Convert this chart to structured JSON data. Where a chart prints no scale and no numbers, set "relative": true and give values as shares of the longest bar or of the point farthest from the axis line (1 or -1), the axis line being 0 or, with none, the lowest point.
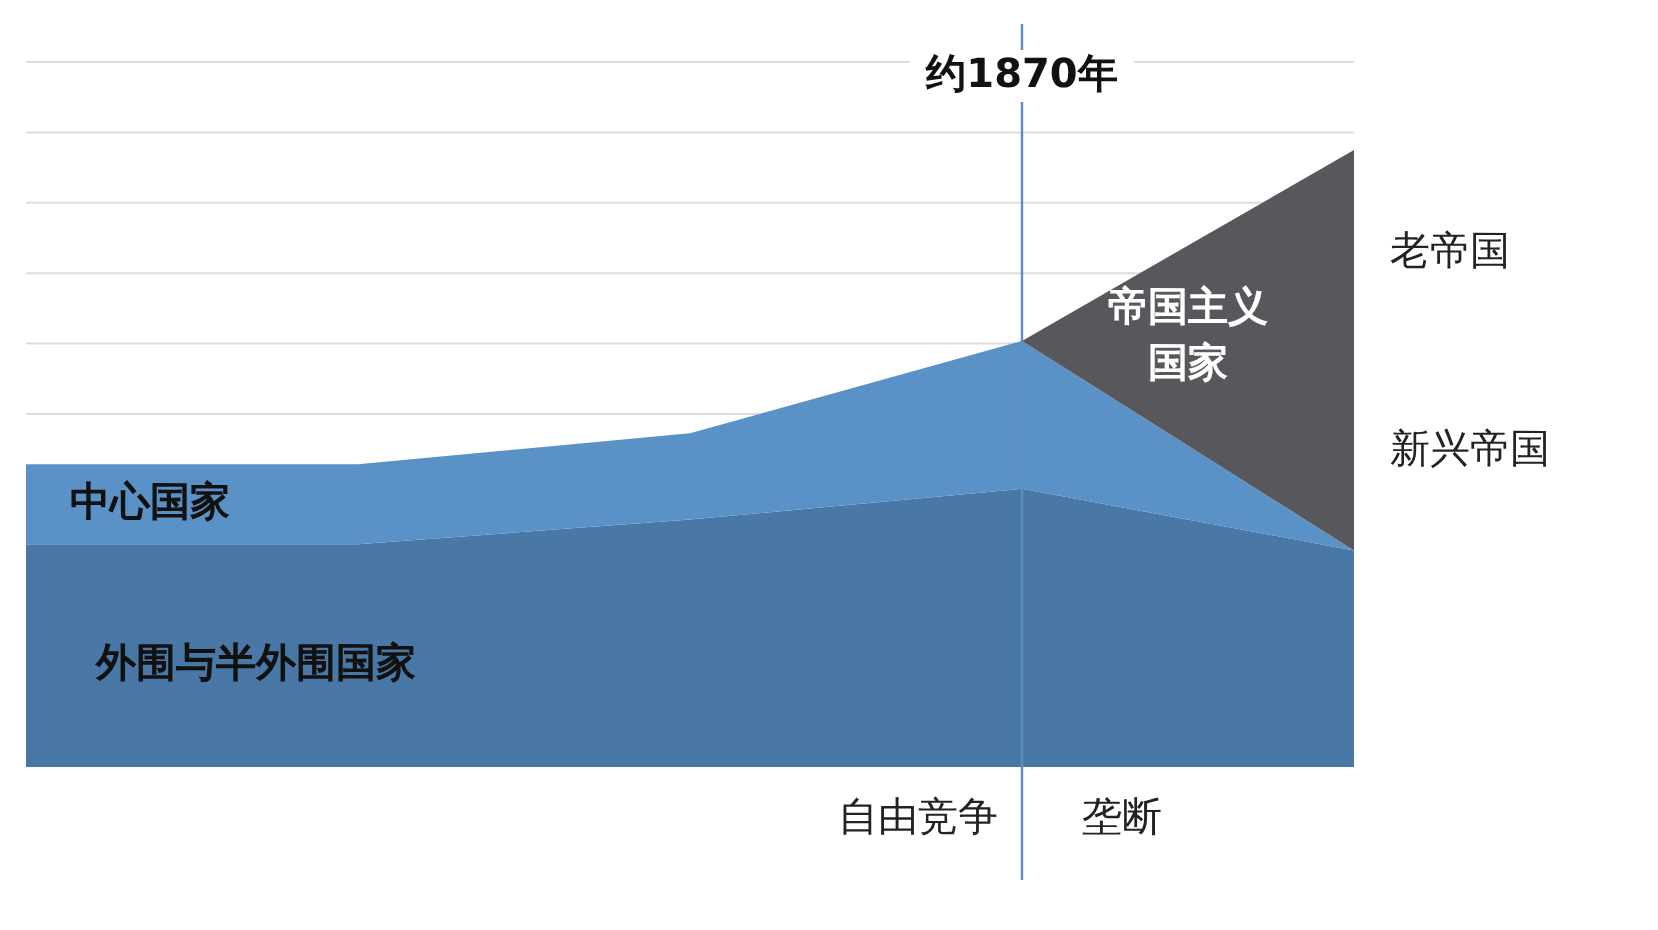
{
  "chart_data": {
    "type": "area",
    "relative": true,
    "stacked": true,
    "grid": "y",
    "categories": [
      null,
      null,
      null,
      null,
      null
    ],
    "series": [
      {
        "name": "外围与半外围国家",
        "color": "#4a78a6",
        "values": [
          0.36,
          0.36,
          0.4,
          0.45,
          0.35
        ]
      },
      {
        "name": "中心国家",
        "color": "#5a92c7",
        "values": [
          0.13,
          0.13,
          0.14,
          0.24,
          0
        ]
      },
      {
        "name": "帝国主义国家",
        "color": "#58585c",
        "values": [
          null,
          null,
          null,
          0,
          0.65
        ]
      }
    ],
    "annotations": [
      "约1870年",
      "自由竞争",
      "垄断",
      "老帝国",
      "新兴帝国"
    ]
  }
}
